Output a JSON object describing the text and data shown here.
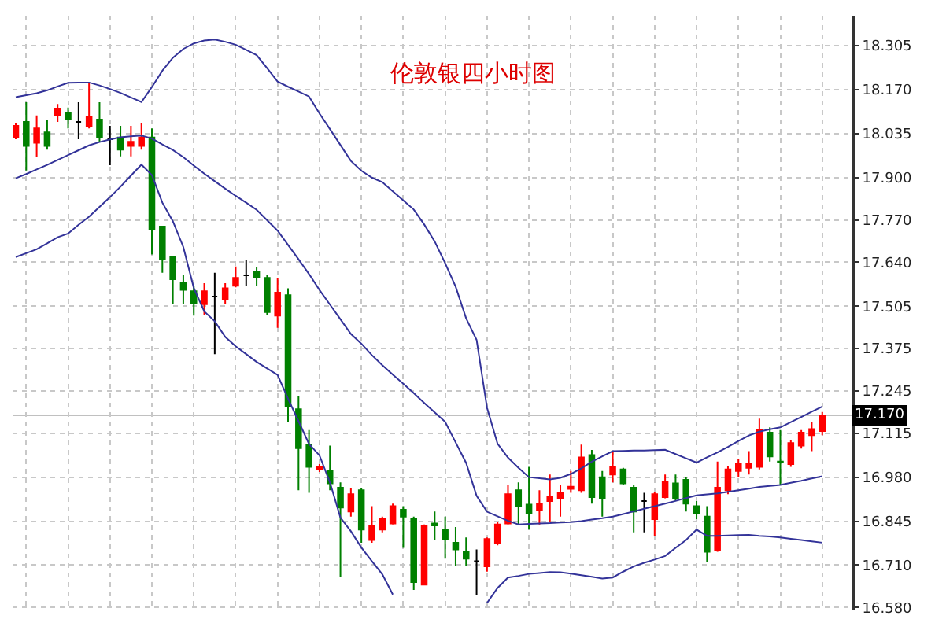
{
  "chart_data": {
    "type": "candlestick",
    "title": "伦敦银四小时图",
    "categories": [
      null,
      null,
      null,
      null,
      null,
      null,
      null,
      null,
      null,
      null,
      null,
      null,
      null,
      null,
      null,
      null,
      null,
      null,
      null,
      null,
      null,
      null,
      null,
      null,
      null,
      null,
      null,
      null,
      null,
      null,
      null,
      null,
      null,
      null,
      null,
      null,
      null,
      null,
      null,
      null,
      null,
      null,
      null,
      null,
      null,
      null,
      null,
      null,
      null,
      null,
      null,
      null,
      null,
      null,
      null,
      null,
      null,
      null,
      null,
      null,
      null,
      null,
      null,
      null,
      null,
      null,
      null,
      null,
      null,
      null,
      null,
      null,
      null,
      null,
      null,
      null,
      null,
      null
    ],
    "ohlc": [
      [
        18.023,
        18.067,
        18.018,
        18.059
      ],
      [
        18.071,
        18.131,
        17.922,
        17.997
      ],
      [
        18.007,
        18.091,
        17.962,
        18.051
      ],
      [
        18.039,
        18.078,
        17.986,
        17.997
      ],
      [
        18.091,
        18.126,
        18.071,
        18.112
      ],
      [
        18.099,
        18.115,
        18.051,
        18.078
      ],
      [
        18.071,
        18.131,
        18.018,
        18.071
      ],
      [
        18.059,
        18.192,
        18.051,
        18.088
      ],
      [
        18.078,
        18.131,
        18.01,
        18.023
      ],
      [
        18.018,
        18.059,
        17.938,
        18.018
      ],
      [
        18.023,
        18.059,
        17.965,
        17.986
      ],
      [
        17.997,
        18.059,
        17.965,
        18.01
      ],
      [
        17.997,
        18.067,
        17.986,
        18.023
      ],
      [
        18.023,
        18.051,
        17.664,
        17.74
      ],
      [
        17.75,
        17.75,
        17.608,
        17.648
      ],
      [
        17.656,
        17.656,
        17.511,
        17.588
      ],
      [
        17.576,
        17.6,
        17.511,
        17.555
      ],
      [
        17.551,
        17.568,
        17.476,
        17.514
      ],
      [
        17.511,
        17.576,
        17.479,
        17.551
      ],
      [
        17.535,
        17.608,
        17.358,
        17.535
      ],
      [
        17.527,
        17.576,
        17.511,
        17.56
      ],
      [
        17.568,
        17.627,
        17.563,
        17.592
      ],
      [
        17.6,
        17.648,
        17.568,
        17.6
      ],
      [
        17.611,
        17.624,
        17.568,
        17.595
      ],
      [
        17.592,
        17.6,
        17.479,
        17.487
      ],
      [
        17.476,
        17.592,
        17.439,
        17.547
      ],
      [
        17.539,
        17.56,
        17.149,
        17.197
      ],
      [
        17.189,
        17.23,
        16.94,
        17.069
      ],
      [
        17.08,
        17.125,
        16.932,
        17.012
      ],
      [
        17.004,
        17.02,
        16.996,
        17.012
      ],
      [
        16.999,
        17.077,
        16.94,
        16.961
      ],
      [
        16.948,
        16.964,
        16.674,
        16.887
      ],
      [
        16.875,
        16.948,
        16.859,
        16.928
      ],
      [
        16.94,
        16.948,
        16.779,
        16.819
      ],
      [
        16.787,
        16.891,
        16.779,
        16.83
      ],
      [
        16.819,
        16.859,
        16.811,
        16.851
      ],
      [
        16.838,
        16.899,
        16.835,
        16.891
      ],
      [
        16.88,
        16.891,
        16.763,
        16.859
      ],
      [
        16.851,
        16.859,
        16.634,
        16.658
      ],
      [
        16.65,
        16.835,
        16.65,
        16.832
      ],
      [
        16.838,
        16.875,
        16.787,
        16.832
      ],
      [
        16.819,
        16.859,
        16.73,
        16.79
      ],
      [
        16.779,
        16.827,
        16.706,
        16.758
      ],
      [
        16.751,
        16.795,
        16.706,
        16.73
      ],
      [
        16.722,
        16.758,
        16.618,
        16.722
      ],
      [
        16.706,
        16.795,
        16.69,
        16.79
      ],
      [
        16.779,
        16.843,
        16.771,
        16.835
      ],
      [
        16.838,
        16.956,
        16.835,
        16.928
      ],
      [
        16.94,
        16.964,
        16.835,
        16.891
      ],
      [
        16.896,
        17.012,
        16.819,
        16.87
      ],
      [
        16.88,
        16.94,
        16.835,
        16.899
      ],
      [
        16.907,
        16.988,
        16.843,
        16.919
      ],
      [
        16.915,
        16.956,
        16.859,
        16.932
      ],
      [
        16.944,
        16.999,
        16.932,
        16.951
      ],
      [
        16.94,
        17.08,
        16.932,
        17.041
      ],
      [
        17.048,
        17.064,
        16.899,
        16.919
      ],
      [
        16.98,
        16.999,
        16.859,
        16.915
      ],
      [
        16.988,
        17.057,
        16.964,
        17.012
      ],
      [
        17.004,
        17.009,
        16.956,
        16.961
      ],
      [
        16.948,
        16.956,
        16.811,
        16.875
      ],
      [
        16.907,
        16.932,
        16.811,
        16.907
      ],
      [
        16.851,
        16.935,
        16.8,
        16.928
      ],
      [
        16.919,
        16.988,
        16.915,
        16.967
      ],
      [
        16.961,
        16.988,
        16.907,
        16.915
      ],
      [
        16.972,
        16.98,
        16.875,
        16.899
      ],
      [
        16.891,
        16.907,
        16.851,
        16.87
      ],
      [
        16.859,
        16.891,
        16.719,
        16.751
      ],
      [
        16.755,
        17.028,
        16.751,
        16.948
      ],
      [
        16.94,
        17.015,
        16.928,
        17.004
      ],
      [
        16.999,
        17.036,
        16.98,
        17.02
      ],
      [
        17.009,
        17.06,
        16.988,
        17.02
      ],
      [
        17.012,
        17.16,
        17.004,
        17.125
      ],
      [
        17.117,
        17.133,
        17.028,
        17.044
      ],
      [
        17.028,
        17.125,
        16.956,
        17.025
      ],
      [
        17.02,
        17.093,
        17.012,
        17.085
      ],
      [
        17.077,
        17.125,
        17.068,
        17.117
      ],
      [
        17.109,
        17.149,
        17.06,
        17.128
      ],
      [
        17.122,
        17.18,
        17.109,
        17.17
      ]
    ],
    "colors": [
      "#ff0000",
      "#008000",
      "#ff0000",
      "#008000",
      "#ff0000",
      "#008000",
      "#000000",
      "#ff0000",
      "#008000",
      "#000000",
      "#008000",
      "#ff0000",
      "#ff0000",
      "#008000",
      "#008000",
      "#008000",
      "#008000",
      "#008000",
      "#ff0000",
      "#000000",
      "#ff0000",
      "#ff0000",
      "#000000",
      "#008000",
      "#008000",
      "#ff0000",
      "#008000",
      "#008000",
      "#008000",
      "#ff0000",
      "#008000",
      "#008000",
      "#ff0000",
      "#008000",
      "#ff0000",
      "#ff0000",
      "#ff0000",
      "#008000",
      "#008000",
      "#ff0000",
      "#008000",
      "#008000",
      "#008000",
      "#008000",
      "#000000",
      "#ff0000",
      "#ff0000",
      "#ff0000",
      "#008000",
      "#008000",
      "#ff0000",
      "#ff0000",
      "#ff0000",
      "#ff0000",
      "#ff0000",
      "#008000",
      "#008000",
      "#ff0000",
      "#008000",
      "#008000",
      "#000000",
      "#ff0000",
      "#ff0000",
      "#008000",
      "#008000",
      "#008000",
      "#008000",
      "#ff0000",
      "#ff0000",
      "#ff0000",
      "#ff0000",
      "#ff0000",
      "#008000",
      "#008000",
      "#ff0000",
      "#ff0000",
      "#ff0000",
      "#ff0000"
    ],
    "series": [
      {
        "type": "line",
        "color": "#333399",
        "values": [
          18.147,
          18.153,
          18.159,
          18.168,
          18.18,
          18.191,
          18.192,
          18.192,
          18.183,
          18.172,
          18.16,
          18.146,
          18.132,
          18.178,
          18.228,
          18.268,
          18.295,
          18.312,
          18.321,
          18.324,
          18.317,
          18.308,
          18.292,
          18.276,
          18.236,
          18.195,
          18.179,
          18.164,
          18.149,
          18.097,
          18.049,
          18.0,
          17.951,
          17.921,
          17.9,
          17.886,
          17.858,
          17.83,
          17.802,
          17.756,
          17.704,
          17.637,
          17.565,
          17.468,
          17.402,
          17.193,
          17.083,
          17.04,
          17.009,
          16.98,
          16.977,
          16.973,
          16.978,
          16.99,
          17.007,
          17.028,
          17.044,
          17.06,
          17.061,
          17.062,
          17.062,
          17.063,
          17.064,
          17.051,
          17.038,
          17.025,
          17.041,
          17.056,
          17.073,
          17.091,
          17.108,
          17.12,
          17.127,
          17.133,
          17.149,
          17.165,
          17.181,
          17.197
        ]
      },
      {
        "type": "line",
        "color": "#333399",
        "values": [
          17.898,
          17.911,
          17.925,
          17.939,
          17.954,
          17.969,
          17.984,
          17.999,
          18.009,
          18.017,
          18.024,
          18.027,
          18.029,
          18.02,
          18.002,
          17.985,
          17.963,
          17.937,
          17.912,
          17.889,
          17.866,
          17.844,
          17.823,
          17.801,
          17.769,
          17.737,
          17.693,
          17.649,
          17.604,
          17.555,
          17.51,
          17.465,
          17.42,
          17.39,
          17.355,
          17.324,
          17.295,
          17.267,
          17.238,
          17.208,
          17.179,
          17.15,
          17.087,
          17.024,
          16.923,
          16.874,
          16.86,
          16.846,
          16.835,
          16.837,
          16.838,
          16.839,
          16.841,
          16.842,
          16.845,
          16.85,
          16.854,
          16.859,
          16.867,
          16.875,
          16.883,
          16.891,
          16.899,
          16.907,
          16.916,
          16.924,
          16.927,
          16.93,
          16.935,
          16.94,
          16.945,
          16.95,
          16.953,
          16.956,
          16.963,
          16.969,
          16.976,
          16.983
        ]
      },
      {
        "type": "line",
        "color": "#333399",
        "values": [
          17.656,
          17.668,
          17.68,
          17.698,
          17.717,
          17.728,
          17.755,
          17.78,
          17.81,
          17.84,
          17.872,
          17.906,
          17.94,
          17.908,
          17.823,
          17.766,
          17.687,
          17.561,
          17.489,
          17.459,
          17.411,
          17.382,
          17.358,
          17.334,
          17.314,
          17.294,
          17.221,
          17.152,
          17.082,
          17.047,
          16.964,
          16.856,
          16.814,
          16.764,
          16.722,
          16.682,
          16.62,
          null,
          null,
          null,
          null,
          null,
          null,
          null,
          null,
          16.594,
          16.64,
          16.672,
          16.677,
          16.683,
          16.686,
          16.689,
          16.688,
          16.684,
          16.679,
          16.674,
          16.669,
          16.672,
          16.69,
          16.706,
          16.717,
          16.727,
          16.738,
          16.763,
          16.787,
          16.819,
          16.8,
          16.8,
          16.801,
          16.802,
          16.803,
          16.8,
          16.798,
          16.795,
          16.791,
          16.787,
          16.783,
          16.779
        ]
      }
    ],
    "ylim": [
      16.571,
      18.397
    ],
    "yticks": [
      18.305,
      {
        "value": 18.17,
        "label": "18.170"
      },
      18.035,
      {
        "value": 17.9,
        "label": "17.900"
      },
      {
        "value": 17.77,
        "label": "17.770"
      },
      {
        "value": 17.64,
        "label": "17.640"
      },
      17.505,
      17.375,
      17.245,
      17.115,
      {
        "value": 16.98,
        "label": "16.980"
      },
      16.845,
      {
        "value": 16.71,
        "label": "16.710"
      },
      {
        "value": 16.58,
        "label": "16.580"
      }
    ],
    "ref_lines": [
      {
        "axis": "y",
        "value": 17.17,
        "label": "17.170",
        "color": "#c0c0c0"
      }
    ],
    "grid": true,
    "tick_labels": "y"
  }
}
